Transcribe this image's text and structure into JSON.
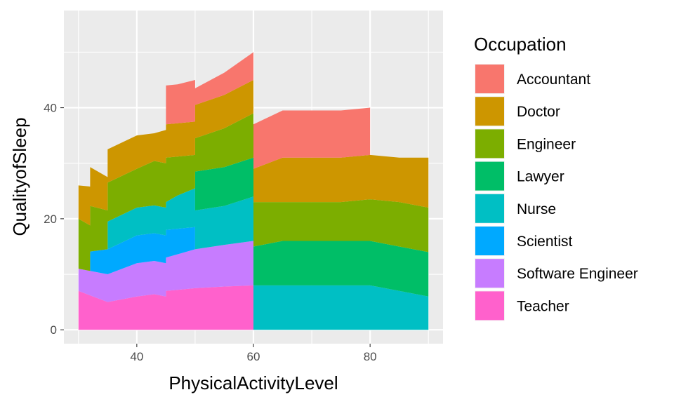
{
  "chart_data": {
    "type": "area",
    "stacked": true,
    "xlabel": "PhysicalActivityLevel",
    "ylabel": "QualityofSleep",
    "xlim": [
      27.5,
      92.5
    ],
    "ylim": [
      -2.5,
      57.5
    ],
    "x_ticks": [
      40,
      60,
      80
    ],
    "y_ticks": [
      0,
      20,
      40
    ],
    "grid": true,
    "legend": {
      "title": "Occupation",
      "position": "right"
    },
    "series": [
      {
        "name": "Accountant",
        "color": "#F8766D",
        "points": [
          [
            45,
            0
          ],
          [
            45.001,
            7
          ],
          [
            47,
            7
          ],
          [
            47,
            7.5
          ],
          [
            50,
            7.5
          ],
          [
            50,
            3
          ],
          [
            55,
            4
          ],
          [
            60,
            5
          ],
          [
            60.001,
            8
          ],
          [
            65,
            8.5
          ],
          [
            75,
            8.5
          ],
          [
            75,
            9
          ],
          [
            80,
            8.5
          ],
          [
            80.001,
            0
          ]
        ]
      },
      {
        "name": "Doctor",
        "color": "#CD9600",
        "points": [
          [
            30,
            6
          ],
          [
            32,
            7
          ],
          [
            35,
            6
          ],
          [
            40,
            6
          ],
          [
            40,
            3
          ],
          [
            43,
            5
          ],
          [
            45,
            6
          ],
          [
            47,
            6
          ],
          [
            50,
            6
          ],
          [
            60,
            6
          ],
          [
            65,
            8
          ],
          [
            75,
            8
          ],
          [
            85,
            8
          ],
          [
            90,
            9
          ]
        ]
      },
      {
        "name": "Engineer",
        "color": "#7CAE00",
        "points": [
          [
            30,
            9
          ],
          [
            35,
            7
          ],
          [
            40,
            7
          ],
          [
            40,
            7
          ],
          [
            43,
            8
          ],
          [
            45,
            8
          ],
          [
            47,
            7
          ],
          [
            50,
            6
          ],
          [
            55,
            7
          ],
          [
            60,
            8
          ],
          [
            65,
            7
          ],
          [
            75,
            7
          ],
          [
            85,
            8
          ],
          [
            90,
            8
          ]
        ]
      },
      {
        "name": "Lawyer",
        "color": "#00BE67",
        "points": [
          [
            30,
            0
          ],
          [
            35,
            0
          ],
          [
            40,
            0
          ],
          [
            45,
            0
          ],
          [
            50,
            0
          ],
          [
            50.001,
            7
          ],
          [
            55,
            7
          ],
          [
            60,
            7
          ],
          [
            65,
            8
          ],
          [
            75,
            8
          ],
          [
            85,
            8
          ],
          [
            90,
            8
          ]
        ]
      },
      {
        "name": "Nurse",
        "color": "#00BFC4",
        "points": [
          [
            30,
            0
          ],
          [
            34.999,
            0
          ],
          [
            35,
            5
          ],
          [
            40,
            5
          ],
          [
            40,
            5
          ],
          [
            45,
            5
          ],
          [
            47,
            6
          ],
          [
            50,
            7
          ],
          [
            55,
            7
          ],
          [
            60,
            8
          ],
          [
            60.001,
            8
          ],
          [
            65,
            8
          ],
          [
            75,
            8
          ],
          [
            75,
            9
          ],
          [
            85,
            7
          ],
          [
            90,
            6
          ]
        ]
      },
      {
        "name": "Scientist",
        "color": "#00A9FF",
        "points": [
          [
            32,
            0
          ],
          [
            32.001,
            3.5
          ],
          [
            35,
            4.5
          ],
          [
            40,
            5
          ],
          [
            45,
            5
          ],
          [
            45,
            5
          ],
          [
            50,
            4
          ],
          [
            50.001,
            0
          ]
        ]
      },
      {
        "name": "Software Engineer",
        "color": "#C77CFF",
        "points": [
          [
            30,
            4
          ],
          [
            35,
            5
          ],
          [
            40,
            6
          ],
          [
            45,
            6
          ],
          [
            45,
            6
          ],
          [
            50,
            7
          ],
          [
            55,
            7.5
          ],
          [
            60,
            8
          ],
          [
            60.001,
            0
          ]
        ]
      },
      {
        "name": "Teacher",
        "color": "#FF61CC",
        "points": [
          [
            30,
            7
          ],
          [
            35,
            5
          ],
          [
            40,
            6
          ],
          [
            40,
            7
          ],
          [
            45,
            6
          ],
          [
            45,
            7
          ],
          [
            50,
            7.5
          ],
          [
            55,
            7.8
          ],
          [
            60,
            8
          ],
          [
            60.001,
            0
          ]
        ]
      }
    ]
  }
}
